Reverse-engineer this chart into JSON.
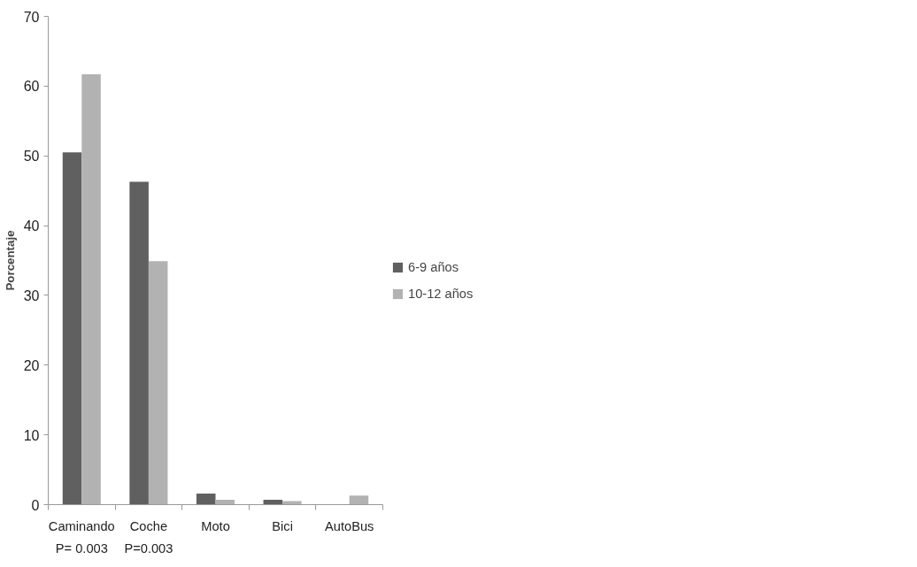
{
  "chart_data": {
    "type": "bar",
    "ylabel": "Porcentaje",
    "categories": [
      "Caminando",
      "Coche",
      "Moto",
      "Bici",
      "AutoBus"
    ],
    "series": [
      {
        "name": "6-9 años",
        "color": "#606060",
        "values": [
          50.5,
          46.3,
          1.6,
          0.7,
          0
        ]
      },
      {
        "name": "10-12 años",
        "color": "#b2b2b2",
        "values": [
          61.7,
          34.9,
          0.7,
          0.5,
          1.3
        ]
      }
    ],
    "ylim": [
      0,
      70
    ],
    "yticks": [
      0,
      10,
      20,
      30,
      40,
      50,
      60,
      70
    ],
    "grid": false,
    "legend": "right",
    "annotations": [
      "P= 0.003",
      "P=0.003"
    ]
  }
}
